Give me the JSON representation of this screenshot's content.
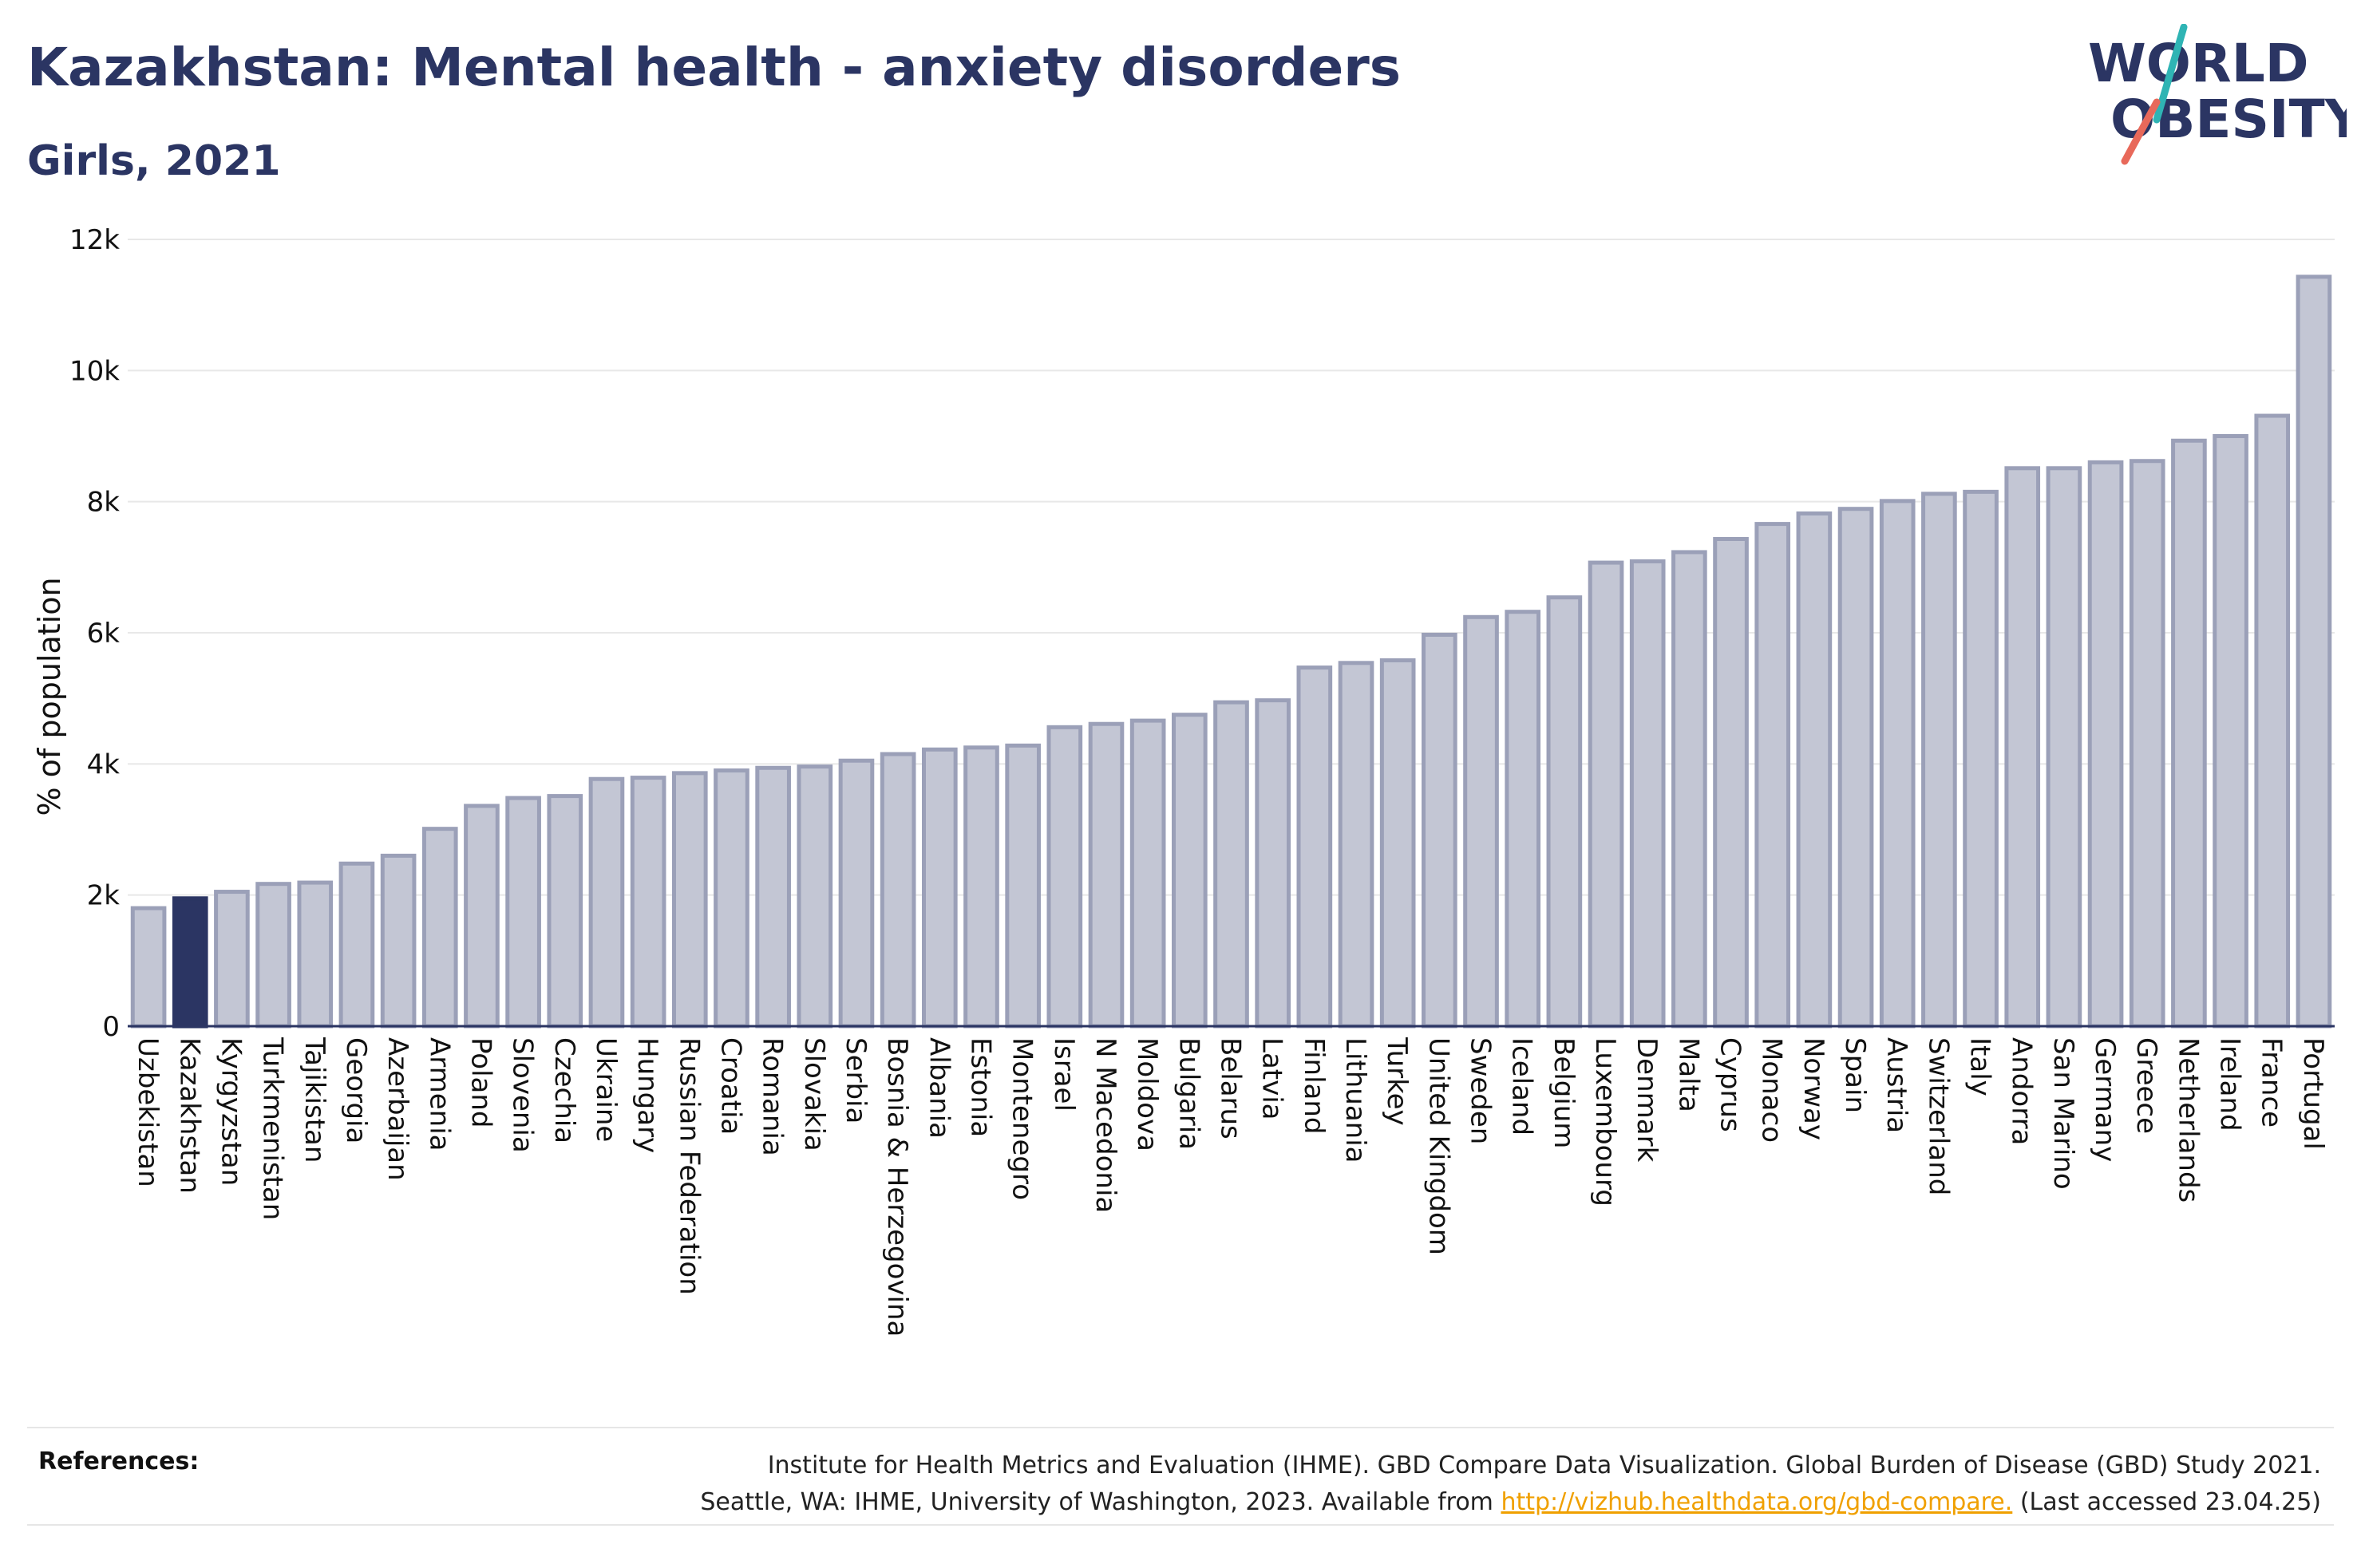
{
  "header": {
    "title": "Kazakhstan: Mental health - anxiety disorders",
    "subtitle": "Girls, 2021"
  },
  "logo": {
    "line1": "WORLD",
    "line2": "OBESITY",
    "colors": {
      "text": "#2b3563",
      "slash_teal": "#2fb4b4",
      "slash_coral": "#e8695a"
    }
  },
  "colors": {
    "bar_fill": "#c3c6d4",
    "bar_stroke": "#9ba0b8",
    "highlight_fill": "#2b3563",
    "grid": "#e8e8e8",
    "axis": "#2b3563",
    "link": "#f0a000"
  },
  "chart_data": {
    "type": "bar",
    "ylabel": "% of population",
    "ylim": [
      0,
      12000
    ],
    "yticks": [
      0,
      2000,
      4000,
      6000,
      8000,
      10000,
      12000
    ],
    "ytick_labels": [
      "0",
      "2k",
      "4k",
      "6k",
      "8k",
      "10k",
      "12k"
    ],
    "grid": true,
    "highlight": "Kazakhstan",
    "categories": [
      "Uzbekistan",
      "Kazakhstan",
      "Kyrgyzstan",
      "Turkmenistan",
      "Tajikistan",
      "Georgia",
      "Azerbaijan",
      "Armenia",
      "Poland",
      "Slovenia",
      "Czechia",
      "Ukraine",
      "Hungary",
      "Russian Federation",
      "Croatia",
      "Romania",
      "Slovakia",
      "Serbia",
      "Bosnia & Herzegovina",
      "Albania",
      "Estonia",
      "Montenegro",
      "Israel",
      "N Macedonia",
      "Moldova",
      "Bulgaria",
      "Belarus",
      "Latvia",
      "Finland",
      "Lithuania",
      "Turkey",
      "United Kingdom",
      "Sweden",
      "Iceland",
      "Belgium",
      "Luxembourg",
      "Denmark",
      "Malta",
      "Cyprus",
      "Monaco",
      "Norway",
      "Spain",
      "Austria",
      "Switzerland",
      "Italy",
      "Andorra",
      "San Marino",
      "Germany",
      "Greece",
      "Netherlands",
      "Ireland",
      "France",
      "Portugal"
    ],
    "values": [
      1800,
      1950,
      2050,
      2170,
      2190,
      2480,
      2600,
      3010,
      3360,
      3480,
      3510,
      3770,
      3790,
      3860,
      3900,
      3940,
      3960,
      4050,
      4150,
      4220,
      4250,
      4280,
      4560,
      4610,
      4660,
      4750,
      4940,
      4970,
      5470,
      5540,
      5580,
      5970,
      6240,
      6320,
      6540,
      7070,
      7090,
      7230,
      7430,
      7660,
      7820,
      7890,
      8010,
      8120,
      8150,
      8510,
      8510,
      8600,
      8620,
      8930,
      9000,
      9310,
      11430
    ]
  },
  "references": {
    "label": "References:",
    "line1": "Institute for Health Metrics and Evaluation (IHME). GBD Compare Data Visualization. Global Burden of Disease (GBD) Study 2021.",
    "line2_prefix": "Seattle, WA: IHME, University of Washington, 2023. Available from ",
    "link": "http://vizhub.healthdata.org/gbd-compare.",
    "line2_suffix": " (Last accessed 23.04.25)"
  }
}
